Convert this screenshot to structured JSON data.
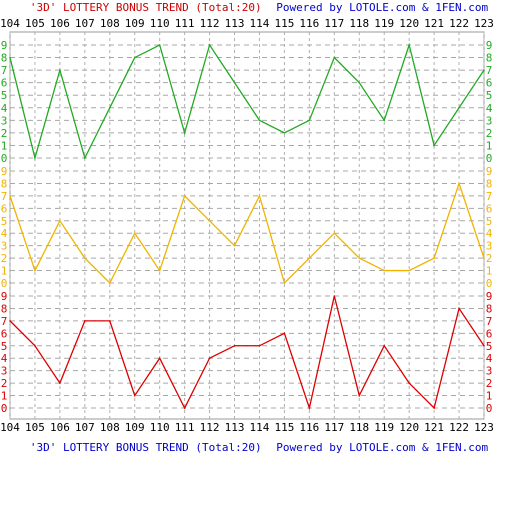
{
  "chart_data": {
    "type": "line",
    "title": {
      "prefix": "'3D' LOTTERY BONUS TREND (Total:20)",
      "powered": "Powered by LOTOLE.com & 1FEN.com"
    },
    "x": [
      "104",
      "105",
      "106",
      "107",
      "108",
      "109",
      "110",
      "111",
      "112",
      "113",
      "114",
      "115",
      "116",
      "117",
      "118",
      "119",
      "120",
      "121",
      "122",
      "123"
    ],
    "y_ticks": [
      "0",
      "1",
      "2",
      "3",
      "4",
      "5",
      "6",
      "7",
      "8",
      "9"
    ],
    "ylim": [
      0,
      9
    ],
    "grid": true,
    "series": [
      {
        "color": "#22aa22",
        "values": [
          8,
          0,
          7,
          0,
          4,
          8,
          9,
          2,
          9,
          6,
          3,
          2,
          3,
          8,
          6,
          3,
          9,
          1,
          4,
          7
        ]
      },
      {
        "color": "#f0b400",
        "values": [
          7,
          1,
          5,
          2,
          0,
          4,
          1,
          7,
          5,
          3,
          7,
          0,
          2,
          4,
          2,
          1,
          1,
          2,
          8,
          2
        ]
      },
      {
        "color": "#dd0000",
        "values": [
          7,
          5,
          2,
          7,
          7,
          1,
          4,
          0,
          4,
          5,
          5,
          6,
          0,
          9,
          1,
          5,
          2,
          0,
          8,
          5
        ]
      }
    ],
    "colors": {
      "title_prefix": "#cc0000",
      "title_powered": "#0000cc",
      "footer_prefix": "#0000cc",
      "footer_powered": "#0000cc",
      "axis_green": "#22aa22",
      "axis_yellow": "#f0b400",
      "axis_red": "#dd0000"
    }
  }
}
